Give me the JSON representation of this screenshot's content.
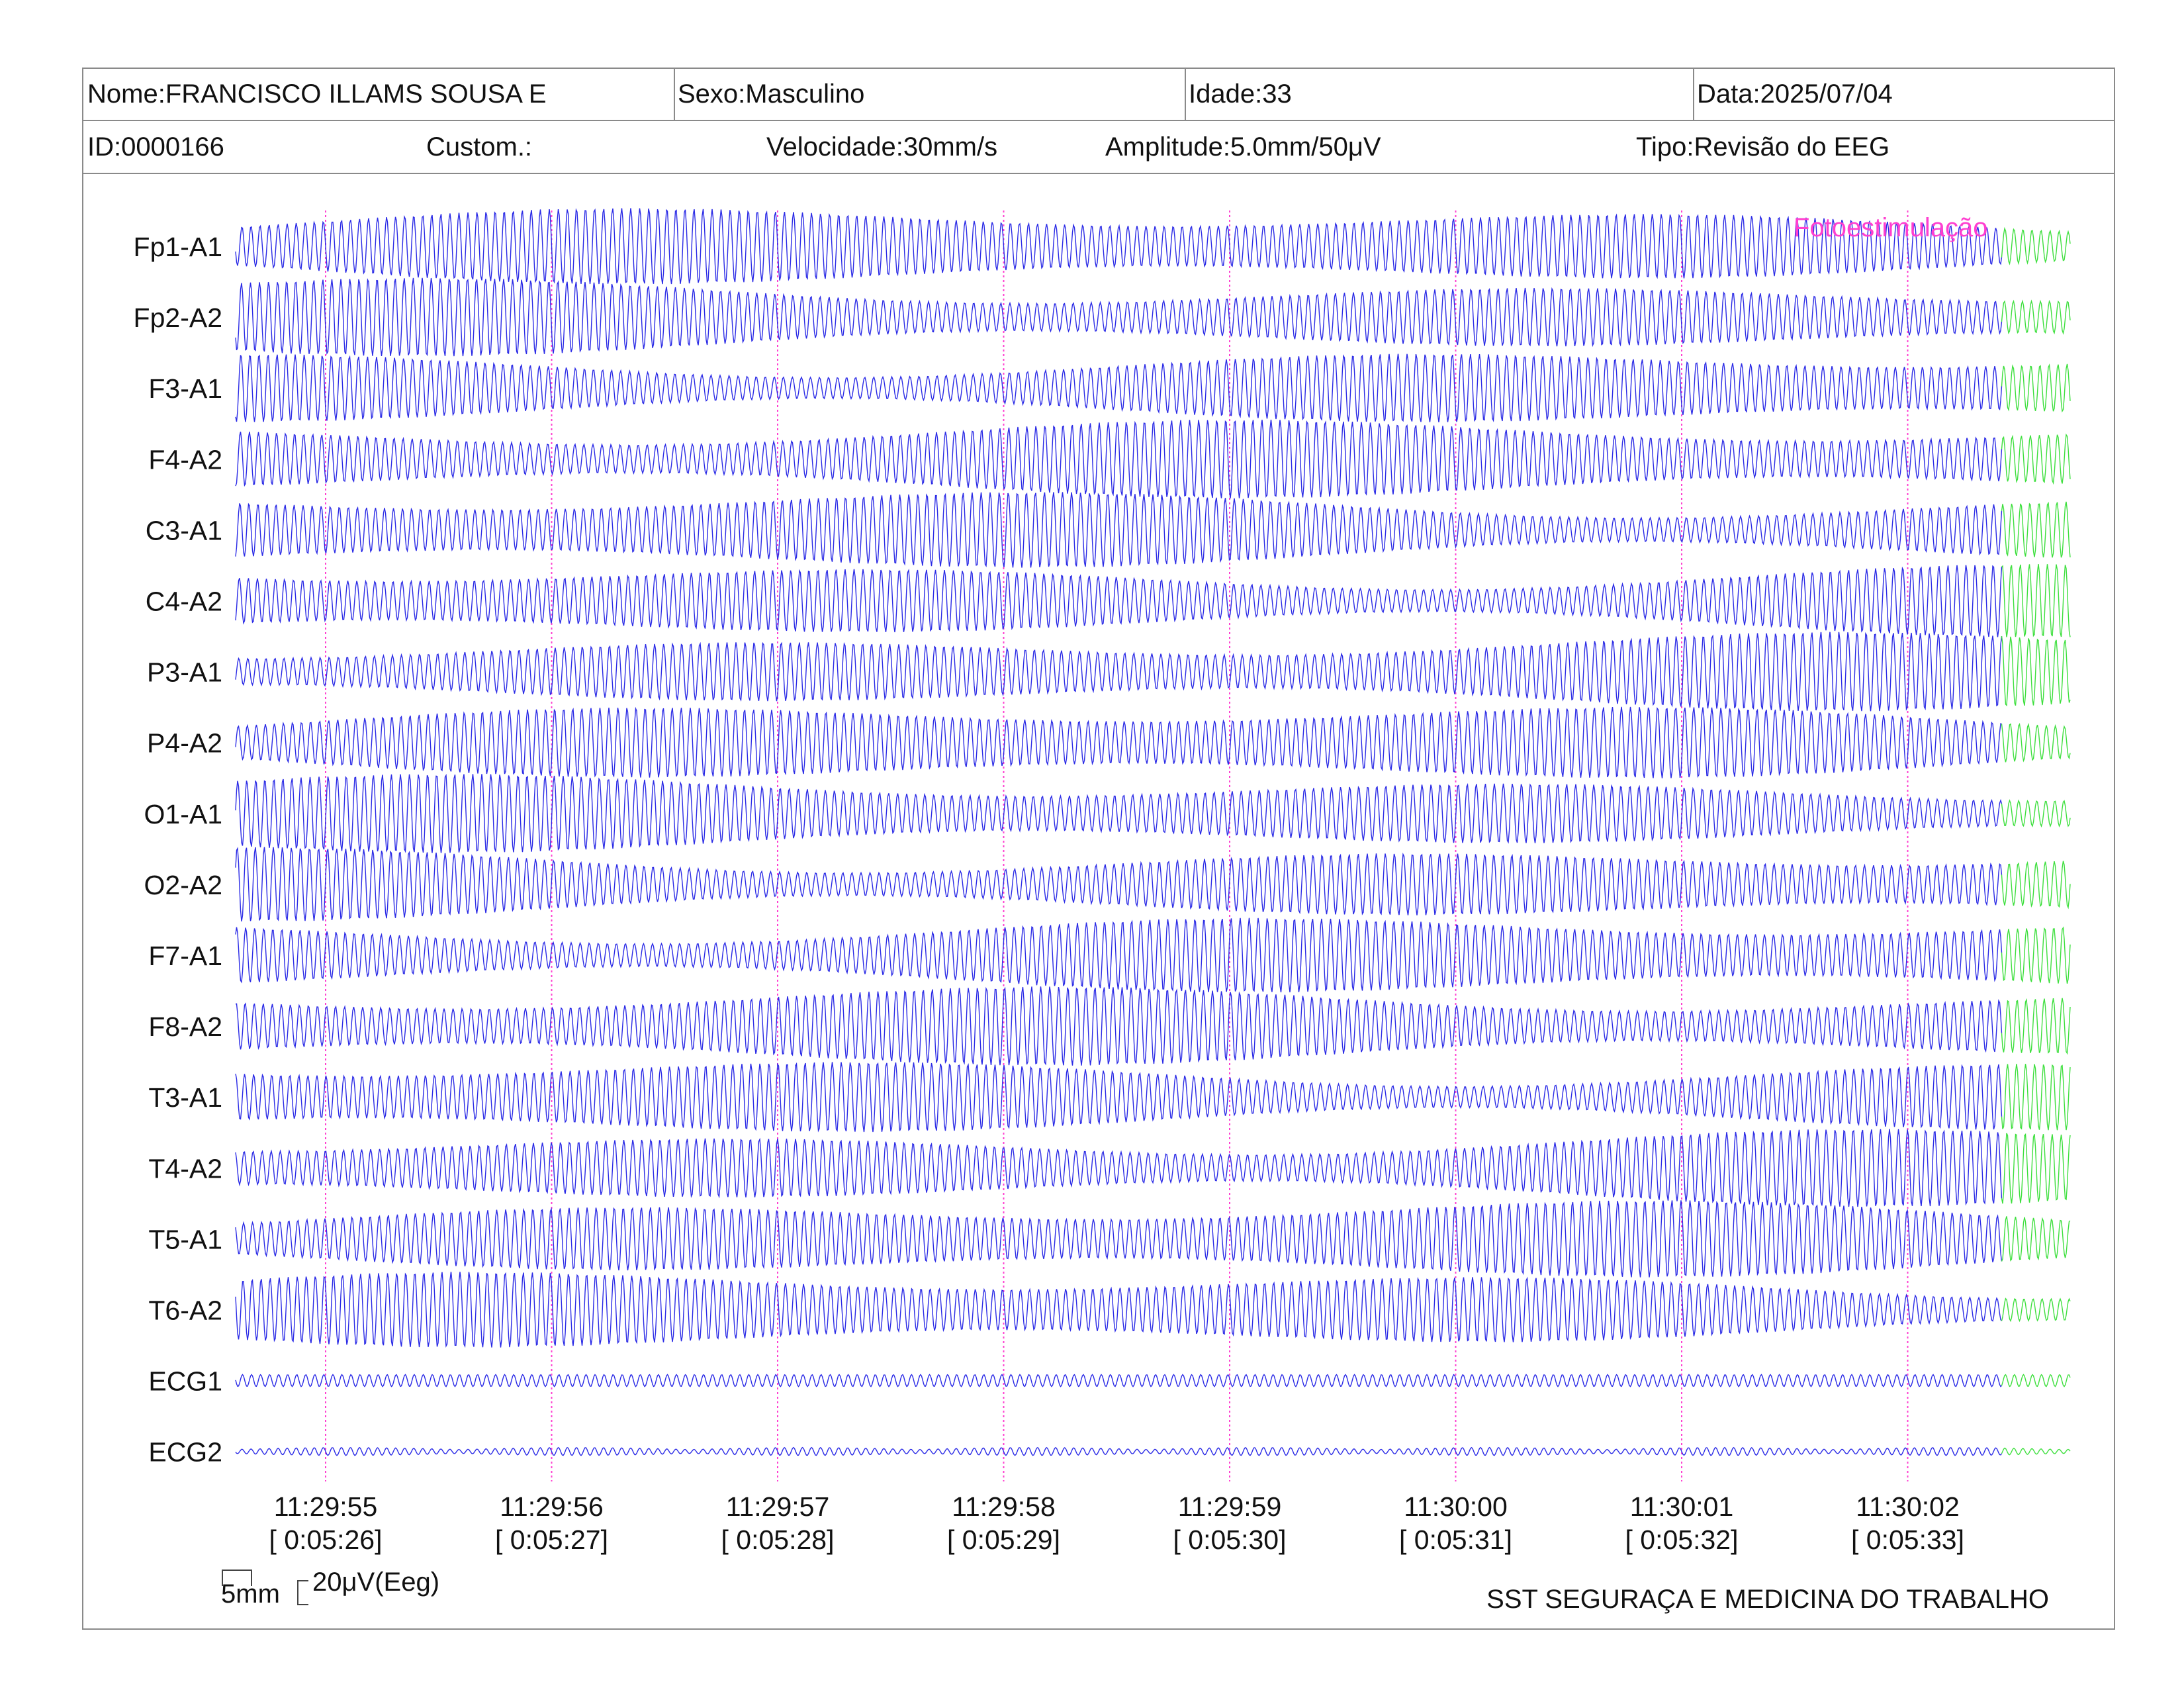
{
  "header": {
    "nome": "Nome:FRANCISCO ILLAMS SOUSA E",
    "sexo": "Sexo:Masculino",
    "idade": "Idade:33",
    "data": "Data:2025/07/04",
    "id": "ID:0000166",
    "custom": "Custom.:",
    "velocidade": "Velocidade:30mm/s",
    "amplitude": "Amplitude:5.0mm/50μV",
    "tipo": "Tipo:Revisão do EEG"
  },
  "chart_data": {
    "type": "line",
    "title": "",
    "channels": [
      "Fp1-A1",
      "Fp2-A2",
      "F3-A1",
      "F4-A2",
      "C3-A1",
      "C4-A2",
      "P3-A1",
      "P4-A2",
      "O1-A1",
      "O2-A2",
      "F7-A1",
      "F8-A2",
      "T3-A1",
      "T4-A2",
      "T5-A1",
      "T6-A2",
      "ECG1",
      "ECG2"
    ],
    "x_ticks": [
      {
        "time": "11:29:55",
        "elapsed": "[ 0:05:26]"
      },
      {
        "time": "11:29:56",
        "elapsed": "[ 0:05:27]"
      },
      {
        "time": "11:29:57",
        "elapsed": "[ 0:05:28]"
      },
      {
        "time": "11:29:58",
        "elapsed": "[ 0:05:29]"
      },
      {
        "time": "11:29:59",
        "elapsed": "[ 0:05:30]"
      },
      {
        "time": "11:30:00",
        "elapsed": "[ 0:05:31]"
      },
      {
        "time": "11:30:01",
        "elapsed": "[ 0:05:32]"
      },
      {
        "time": "11:30:02",
        "elapsed": "[ 0:05:33]"
      }
    ],
    "signal": {
      "eeg_frequency_hz": 25,
      "ecg_frequency_hz": 25,
      "photic_segment_seconds": 0.3
    },
    "annotation": "Fotoestimulação",
    "colors": {
      "eeg": "#2a2ae6",
      "photic": "#3ddf3d",
      "marker": "#ff3fd0"
    },
    "grid": "vertical dotted second markers"
  },
  "scale": {
    "time": "5mm",
    "amplitude": "20μV(Eeg)"
  },
  "footer": "SST SEGURAÇA E MEDICINA DO TRABALHO"
}
